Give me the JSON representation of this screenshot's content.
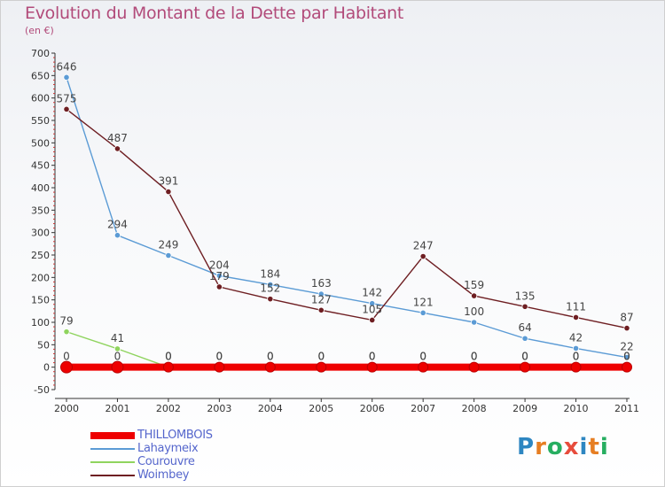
{
  "chart_data": {
    "type": "line",
    "title": "Evolution du Montant de la Dette par Habitant",
    "subtitle": "(en €)",
    "x": [
      "2000",
      "2001",
      "2002",
      "2003",
      "2004",
      "2005",
      "2006",
      "2007",
      "2008",
      "2009",
      "2010",
      "2011"
    ],
    "ylim": [
      -50,
      700
    ],
    "yticks": [
      -50,
      0,
      50,
      100,
      150,
      200,
      250,
      300,
      350,
      400,
      450,
      500,
      550,
      600,
      650,
      700
    ],
    "grid": false,
    "series": [
      {
        "name": "THILLOMBOIS",
        "color": "#ee0000",
        "values": [
          0,
          0,
          0,
          0,
          0,
          0,
          0,
          0,
          0,
          0,
          0,
          0
        ]
      },
      {
        "name": "Lahaymeix",
        "color": "#5b9bd5",
        "values": [
          646,
          294,
          249,
          204,
          184,
          163,
          142,
          121,
          100,
          64,
          42,
          22
        ]
      },
      {
        "name": "Courouvre",
        "color": "#8fd45e",
        "values": [
          79,
          41,
          0,
          0,
          0,
          0,
          0,
          0,
          0,
          0,
          0,
          0
        ]
      },
      {
        "name": "Woimbey",
        "color": "#6e1e22",
        "values": [
          575,
          487,
          391,
          179,
          152,
          127,
          105,
          247,
          159,
          135,
          111,
          87
        ]
      }
    ],
    "label_order": [
      2,
      3,
      1,
      0
    ]
  },
  "logo": {
    "text": "Proxiti"
  }
}
